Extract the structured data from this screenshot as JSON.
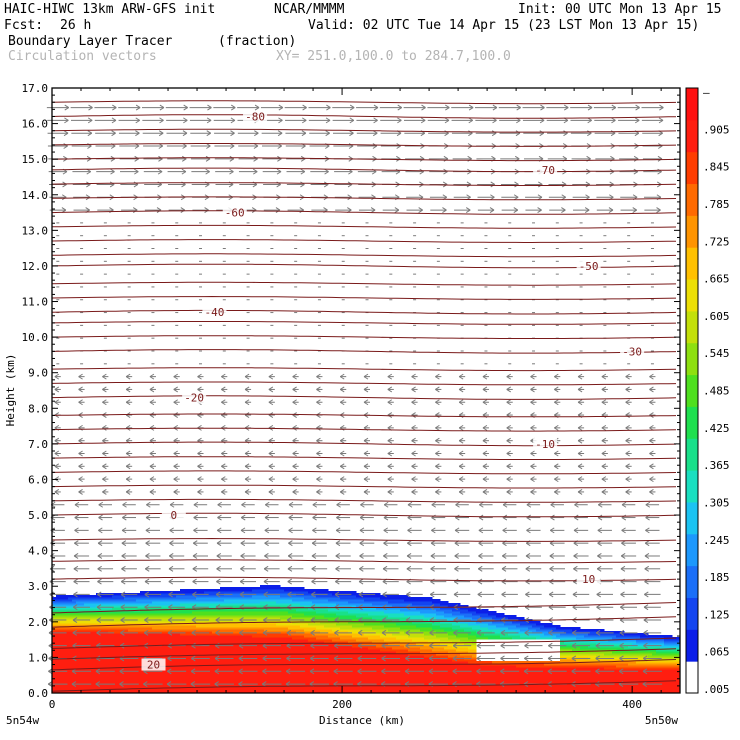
{
  "header": {
    "model": "HAIC-HIWC 13km ARW-GFS init",
    "org": "NCAR/MMMM",
    "init": "Init: 00 UTC Mon 13 Apr 15",
    "fcst_label": "Fcst:",
    "fcst_value": "26 h",
    "valid": "Valid: 02 UTC Tue 14 Apr 15 (23 LST Mon 13 Apr 15)",
    "field": "Boundary Layer Tracer",
    "units": "(fraction)",
    "vectors": "Circulation vectors",
    "xy": "XY= 251.0,100.0 to 284.7,100.0"
  },
  "chart_data": {
    "type": "heatmap",
    "title": "Boundary Layer Tracer",
    "xlabel": "Distance (km)",
    "ylabel": "Height (km)",
    "xlim": [
      0,
      433
    ],
    "ylim": [
      0,
      17
    ],
    "x_ticks": [
      "0",
      "200",
      "400"
    ],
    "x_tick_values": [
      0,
      200,
      400
    ],
    "y_ticks": [
      "0.0",
      "1.0",
      "2.0",
      "3.0",
      "4.0",
      "5.0",
      "6.0",
      "7.0",
      "8.0",
      "9.0",
      "10.0",
      "11.0",
      "12.0",
      "13.0",
      "14.0",
      "15.0",
      "16.0",
      "17.0"
    ],
    "endpoint_left": "5n54w",
    "endpoint_right": "5n50w",
    "colorbar": {
      "labels": [
        "–",
        ".905",
        ".845",
        ".785",
        ".725",
        ".665",
        ".605",
        ".545",
        ".485",
        ".425",
        ".365",
        ".305",
        ".245",
        ".185",
        ".125",
        ".065",
        ".005"
      ],
      "colors": [
        "#ffffff",
        "#0b1ee8",
        "#1345f0",
        "#1b6ff8",
        "#1c98fd",
        "#1bc3f2",
        "#19dfc0",
        "#19e08a",
        "#1fe04f",
        "#4fe01f",
        "#8ee010",
        "#c3e00a",
        "#eddf05",
        "#ffc000",
        "#ff9400",
        "#ff6a00",
        "#ff3d00",
        "#ff1e10",
        "#ff1010"
      ]
    },
    "isotherms": [
      {
        "label": "20",
        "height_km": 0.8
      },
      {
        "label": "10",
        "height_km": 3.2
      },
      {
        "label": "0",
        "height_km": 5.0
      },
      {
        "label": "-10",
        "height_km": 7.0
      },
      {
        "label": "-20",
        "height_km": 8.3
      },
      {
        "label": "-30",
        "height_km": 9.6
      },
      {
        "label": "-40",
        "height_km": 10.7
      },
      {
        "label": "-50",
        "height_km": 12.0
      },
      {
        "label": "-60",
        "height_km": 13.5
      },
      {
        "label": "-70",
        "height_km": 14.7
      },
      {
        "label": "-80",
        "height_km": 16.2
      }
    ]
  }
}
